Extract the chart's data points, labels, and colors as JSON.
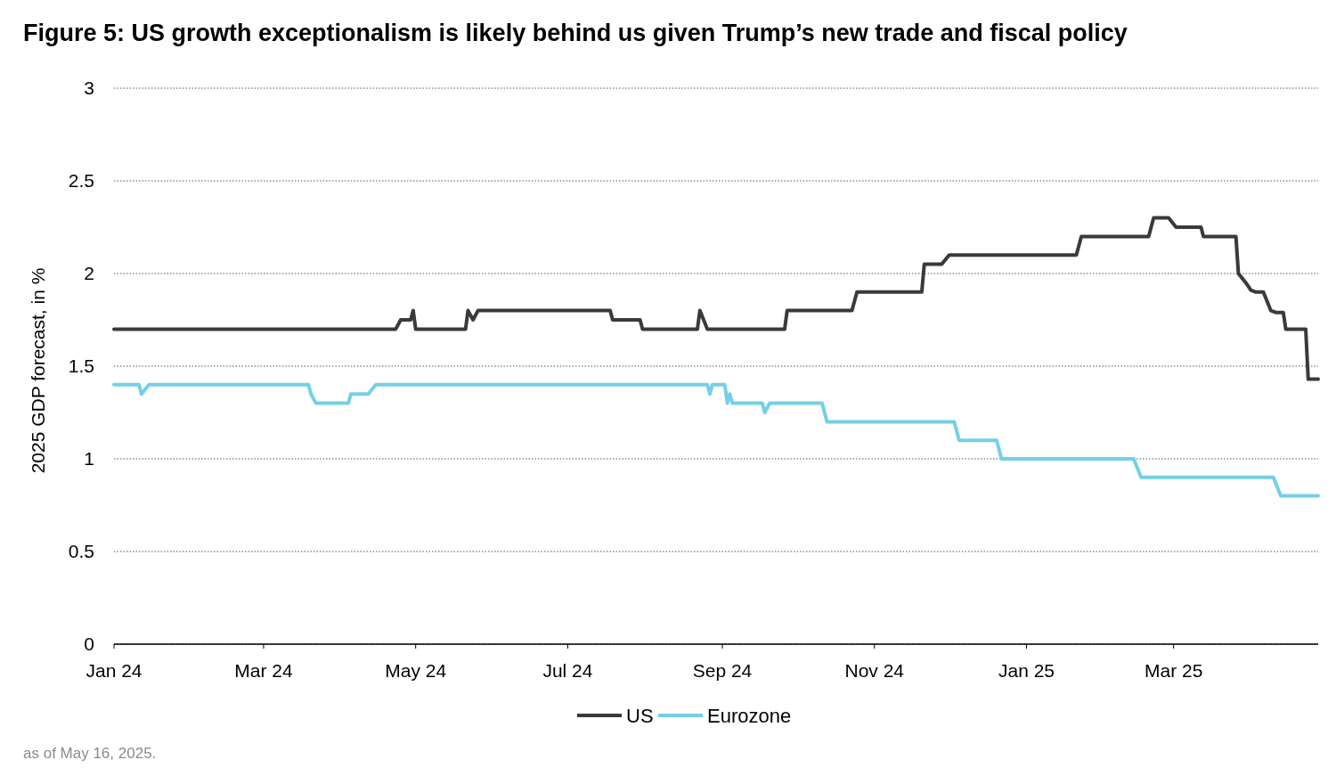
{
  "chart_data": {
    "type": "line",
    "title": "Figure 5: US growth exceptionalism is likely behind us given Trump’s new trade and fiscal policy",
    "ylabel": "2025 GDP forecast, in %",
    "annotations": [
      "as of May 16, 2025."
    ],
    "xlim": [
      "2024-01-01",
      "2025-04-28"
    ],
    "xticks": [
      {
        "value": "2024-01-01",
        "label": "Jan 24"
      },
      {
        "value": "2024-03-01",
        "label": "Mar 24"
      },
      {
        "value": "2024-05-01",
        "label": "May 24"
      },
      {
        "value": "2024-07-01",
        "label": "Jul 24"
      },
      {
        "value": "2024-09-01",
        "label": "Sep 24"
      },
      {
        "value": "2024-11-01",
        "label": "Nov 24"
      },
      {
        "value": "2025-01-01",
        "label": "Jan 25"
      },
      {
        "value": "2025-03-01",
        "label": "Mar 25"
      }
    ],
    "ylim": [
      0,
      3
    ],
    "yticks": [
      0,
      0.5,
      1,
      1.5,
      2,
      2.5,
      3
    ],
    "grid": "y",
    "legend": "bottom",
    "marker": "none",
    "line_style": "solid",
    "series": [
      {
        "name": "US",
        "color": "#3a3a3a",
        "x": [
          "2024-01-01",
          "2024-04-23",
          "2024-04-25",
          "2024-04-29",
          "2024-04-30",
          "2024-05-01",
          "2024-05-21",
          "2024-05-22",
          "2024-05-24",
          "2024-05-26",
          "2024-07-18",
          "2024-07-19",
          "2024-07-30",
          "2024-07-31",
          "2024-08-22",
          "2024-08-23",
          "2024-08-26",
          "2024-09-26",
          "2024-09-27",
          "2024-10-23",
          "2024-10-25",
          "2024-11-20",
          "2024-11-21",
          "2024-11-28",
          "2024-12-01",
          "2025-01-21",
          "2025-01-23",
          "2025-02-19",
          "2025-02-21",
          "2025-02-27",
          "2025-03-02",
          "2025-03-12",
          "2025-03-13",
          "2025-03-26",
          "2025-03-27",
          "2025-03-30",
          "2025-04-01",
          "2025-04-03",
          "2025-04-06",
          "2025-04-09",
          "2025-04-11",
          "2025-04-14",
          "2025-04-15",
          "2025-04-23",
          "2025-04-24",
          "2025-04-28"
        ],
        "values": [
          1.7,
          1.7,
          1.75,
          1.75,
          1.8,
          1.7,
          1.7,
          1.8,
          1.75,
          1.8,
          1.8,
          1.75,
          1.75,
          1.7,
          1.7,
          1.8,
          1.7,
          1.7,
          1.8,
          1.8,
          1.9,
          1.9,
          2.05,
          2.05,
          2.1,
          2.1,
          2.2,
          2.2,
          2.3,
          2.3,
          2.25,
          2.25,
          2.2,
          2.2,
          2.0,
          1.95,
          1.91,
          1.9,
          1.9,
          1.8,
          1.79,
          1.79,
          1.7,
          1.7,
          1.43,
          1.43
        ]
      },
      {
        "name": "Eurozone",
        "color": "#74d0e6",
        "x": [
          "2024-01-01",
          "2024-01-11",
          "2024-01-12",
          "2024-01-15",
          "2024-03-19",
          "2024-03-20",
          "2024-03-22",
          "2024-04-04",
          "2024-04-05",
          "2024-04-12",
          "2024-04-15",
          "2024-08-26",
          "2024-08-27",
          "2024-08-28",
          "2024-09-02",
          "2024-09-03",
          "2024-09-04",
          "2024-09-05",
          "2024-09-17",
          "2024-09-18",
          "2024-09-20",
          "2024-10-11",
          "2024-10-13",
          "2024-12-03",
          "2024-12-05",
          "2024-12-20",
          "2024-12-22",
          "2025-02-13",
          "2025-02-16",
          "2025-04-10",
          "2025-04-13",
          "2025-04-28"
        ],
        "values": [
          1.4,
          1.4,
          1.35,
          1.4,
          1.4,
          1.35,
          1.3,
          1.3,
          1.35,
          1.35,
          1.4,
          1.4,
          1.35,
          1.4,
          1.4,
          1.3,
          1.35,
          1.3,
          1.3,
          1.25,
          1.3,
          1.3,
          1.2,
          1.2,
          1.1,
          1.1,
          1.0,
          1.0,
          0.9,
          0.9,
          0.8,
          0.8
        ]
      }
    ]
  }
}
